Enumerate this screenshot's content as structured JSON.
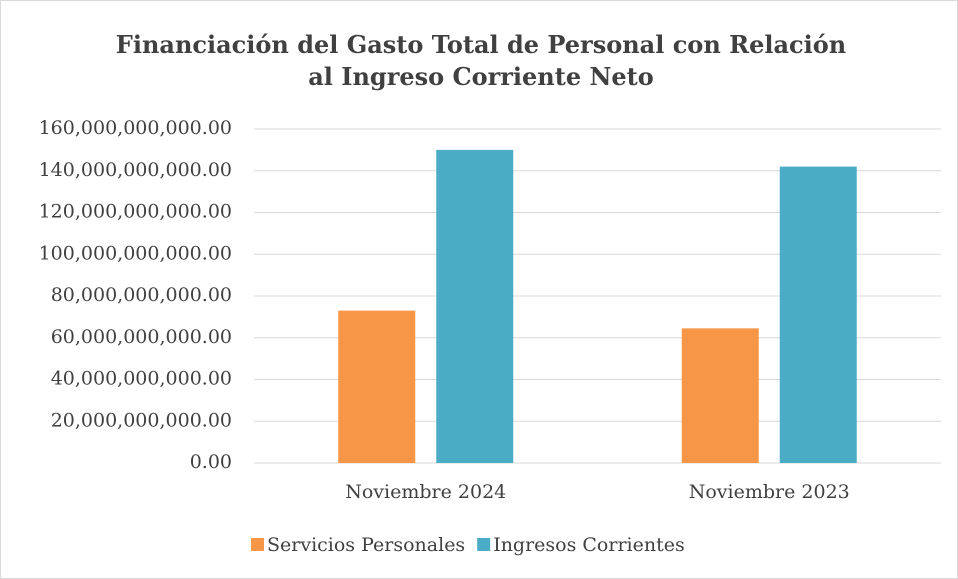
{
  "chart_data": {
    "type": "bar",
    "title": "Financiación del Gasto Total de Personal con Relación al Ingreso Corriente Neto",
    "categories": [
      "Noviembre 2024",
      "Noviembre 2023"
    ],
    "series": [
      {
        "name": "Servicios Personales",
        "color": "#f79646",
        "values": [
          73000000000,
          64500000000
        ]
      },
      {
        "name": "Ingresos Corrientes",
        "color": "#4bacc6",
        "values": [
          150000000000,
          142000000000
        ]
      }
    ],
    "ylim": [
      0,
      160000000000
    ],
    "yticks": [
      {
        "value": 0,
        "label": "0.00"
      },
      {
        "value": 20000000000,
        "label": "20,000,000,000.00"
      },
      {
        "value": 40000000000,
        "label": "40,000,000,000.00"
      },
      {
        "value": 60000000000,
        "label": "60,000,000,000.00"
      },
      {
        "value": 80000000000,
        "label": "80,000,000,000.00"
      },
      {
        "value": 100000000000,
        "label": "100,000,000,000.00"
      },
      {
        "value": 120000000000,
        "label": "120,000,000,000.00"
      },
      {
        "value": 140000000000,
        "label": "140,000,000,000.00"
      },
      {
        "value": 160000000000,
        "label": "160,000,000,000.00"
      }
    ],
    "grid": true,
    "legend": "bottom"
  }
}
